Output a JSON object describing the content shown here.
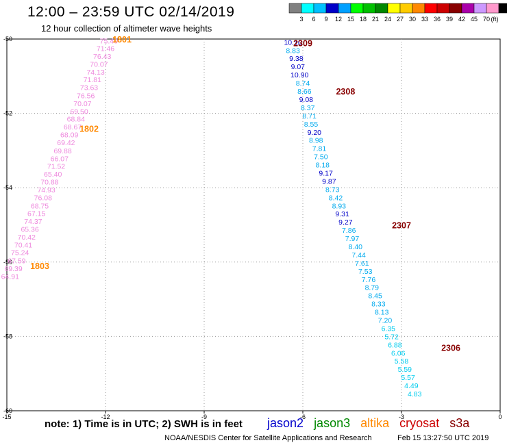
{
  "header": {
    "title": "12:00 – 23:59 UTC 02/14/2019",
    "subtitle": "12 hour collection of altimeter wave heights"
  },
  "scale": {
    "labels": [
      "3",
      "6",
      "9",
      "12",
      "15",
      "18",
      "21",
      "24",
      "27",
      "30",
      "33",
      "36",
      "39",
      "42",
      "45",
      "70"
    ],
    "unit": "(ft)",
    "colors": [
      "#808080",
      "#00ffff",
      "#00c0ff",
      "#0000c8",
      "#00a0ff",
      "#00ff00",
      "#00c000",
      "#008800",
      "#ffff00",
      "#ffcc00",
      "#ff8800",
      "#ff0000",
      "#cc0000",
      "#880000",
      "#aa00aa",
      "#cc99ff",
      "#ff99cc",
      "#000000"
    ]
  },
  "footer": {
    "note": "note: 1) Time is in UTC; 2) SWH is in feet",
    "credit": "NOAA/NESDIS Center for Satellite Applications and Research",
    "date": "Feb 15 13:27:50 UTC 2019",
    "satellites": [
      {
        "name": "jason2",
        "color": "#0000cc"
      },
      {
        "name": "jason3",
        "color": "#008800"
      },
      {
        "name": "altika",
        "color": "#ff8800"
      },
      {
        "name": "cryosat",
        "color": "#cc0000"
      },
      {
        "name": "s3a",
        "color": "#880000"
      }
    ]
  },
  "chart_data": {
    "type": "scatter",
    "xlim": [
      -15,
      0
    ],
    "ylim": [
      -60,
      -50
    ],
    "x_ticks": [
      "-15",
      "-12",
      "-9",
      "-6",
      "-3",
      "0"
    ],
    "y_ticks": [
      "-50",
      "-52",
      "-54",
      "-56",
      "-58",
      "-60"
    ],
    "grid": true,
    "pass_labels": [
      {
        "text": "1801",
        "x": -11.5,
        "y": -50.0,
        "color": "#ff8800"
      },
      {
        "text": "1802",
        "x": -12.5,
        "y": -52.4,
        "color": "#ff8800"
      },
      {
        "text": "1803",
        "x": -14.0,
        "y": -56.1,
        "color": "#ff8800"
      },
      {
        "text": "2309",
        "x": -6.0,
        "y": -50.1,
        "color": "#880000"
      },
      {
        "text": "2308",
        "x": -4.7,
        "y": -51.4,
        "color": "#880000"
      },
      {
        "text": "2307",
        "x": -3.0,
        "y": -55.0,
        "color": "#880000"
      },
      {
        "text": "2306",
        "x": -1.5,
        "y": -58.3,
        "color": "#880000"
      }
    ],
    "series": [
      {
        "color": "#ee88dd",
        "points": [
          {
            "x": -11.9,
            "y": -50.05,
            "label": "75.40"
          },
          {
            "x": -12.0,
            "y": -50.25,
            "label": "71.46"
          },
          {
            "x": -12.1,
            "y": -50.46,
            "label": "76.43"
          },
          {
            "x": -12.2,
            "y": -50.67,
            "label": "70.07"
          },
          {
            "x": -12.3,
            "y": -50.88,
            "label": "74.13"
          },
          {
            "x": -12.4,
            "y": -51.09,
            "label": "71.81"
          },
          {
            "x": -12.5,
            "y": -51.3,
            "label": "73.63"
          },
          {
            "x": -12.6,
            "y": -51.52,
            "label": "76.56"
          },
          {
            "x": -12.7,
            "y": -51.73,
            "label": "70.07"
          },
          {
            "x": -12.8,
            "y": -51.94,
            "label": "69.50"
          },
          {
            "x": -12.9,
            "y": -52.15,
            "label": "68.84"
          },
          {
            "x": -13.0,
            "y": -52.36,
            "label": "68.67"
          },
          {
            "x": -13.1,
            "y": -52.57,
            "label": "68.09"
          },
          {
            "x": -13.2,
            "y": -52.78,
            "label": "69.42"
          },
          {
            "x": -13.3,
            "y": -53.0,
            "label": "69.88"
          },
          {
            "x": -13.4,
            "y": -53.21,
            "label": "66.07"
          },
          {
            "x": -13.5,
            "y": -53.42,
            "label": "71.52"
          },
          {
            "x": -13.6,
            "y": -53.63,
            "label": "65.40"
          },
          {
            "x": -13.7,
            "y": -53.84,
            "label": "70.88"
          },
          {
            "x": -13.8,
            "y": -54.05,
            "label": "74.93"
          },
          {
            "x": -13.9,
            "y": -54.26,
            "label": "76.08"
          },
          {
            "x": -14.0,
            "y": -54.48,
            "label": "68.75"
          },
          {
            "x": -14.1,
            "y": -54.69,
            "label": "67.15"
          },
          {
            "x": -14.2,
            "y": -54.9,
            "label": "74.37"
          },
          {
            "x": -14.3,
            "y": -55.11,
            "label": "65.36"
          },
          {
            "x": -14.4,
            "y": -55.32,
            "label": "70.42"
          },
          {
            "x": -14.5,
            "y": -55.53,
            "label": "70.41"
          },
          {
            "x": -14.6,
            "y": -55.74,
            "label": "75.24"
          },
          {
            "x": -14.7,
            "y": -55.96,
            "label": "67.59"
          },
          {
            "x": -14.8,
            "y": -56.17,
            "label": "69.39"
          },
          {
            "x": -14.9,
            "y": -56.38,
            "label": "64.91"
          }
        ]
      },
      {
        "color": "#00aaee",
        "points": [
          {
            "x": -6.3,
            "y": -50.08,
            "label": "10.10",
            "color": "#0000c8"
          },
          {
            "x": -6.3,
            "y": -50.3,
            "label": "8.83",
            "color": "#00aaee"
          },
          {
            "x": -6.2,
            "y": -50.52,
            "label": "9.38",
            "color": "#0000c8"
          },
          {
            "x": -6.15,
            "y": -50.74,
            "label": "9.07",
            "color": "#0000c8"
          },
          {
            "x": -6.1,
            "y": -50.96,
            "label": "10.90",
            "color": "#0000c8"
          },
          {
            "x": -6.0,
            "y": -51.18,
            "label": "8.74",
            "color": "#00aaee"
          },
          {
            "x": -5.95,
            "y": -51.4,
            "label": "8.66",
            "color": "#00aaee"
          },
          {
            "x": -5.9,
            "y": -51.62,
            "label": "9.08",
            "color": "#0000c8"
          },
          {
            "x": -5.85,
            "y": -51.84,
            "label": "8.37",
            "color": "#00aaee"
          },
          {
            "x": -5.8,
            "y": -52.06,
            "label": "8.71",
            "color": "#00aaee"
          },
          {
            "x": -5.75,
            "y": -52.28,
            "label": "8.55",
            "color": "#00aaee"
          },
          {
            "x": -5.65,
            "y": -52.5,
            "label": "9.20",
            "color": "#0000c8"
          },
          {
            "x": -5.6,
            "y": -52.72,
            "label": "8.98",
            "color": "#00aaee"
          },
          {
            "x": -5.5,
            "y": -52.94,
            "label": "7.81",
            "color": "#00aaee"
          },
          {
            "x": -5.45,
            "y": -53.16,
            "label": "7.50",
            "color": "#00aaee"
          },
          {
            "x": -5.4,
            "y": -53.38,
            "label": "8.18",
            "color": "#00aaee"
          },
          {
            "x": -5.3,
            "y": -53.6,
            "label": "9.17",
            "color": "#0000c8"
          },
          {
            "x": -5.2,
            "y": -53.82,
            "label": "9.87",
            "color": "#0000c8"
          },
          {
            "x": -5.1,
            "y": -54.04,
            "label": "8.73",
            "color": "#00aaee"
          },
          {
            "x": -5.0,
            "y": -54.26,
            "label": "8.42",
            "color": "#00aaee"
          },
          {
            "x": -4.9,
            "y": -54.48,
            "label": "8.93",
            "color": "#00aaee"
          },
          {
            "x": -4.8,
            "y": -54.7,
            "label": "9.31",
            "color": "#0000c8"
          },
          {
            "x": -4.7,
            "y": -54.92,
            "label": "9.27",
            "color": "#0000c8"
          },
          {
            "x": -4.6,
            "y": -55.14,
            "label": "7.86",
            "color": "#00aaee"
          },
          {
            "x": -4.5,
            "y": -55.36,
            "label": "7.97",
            "color": "#00aaee"
          },
          {
            "x": -4.4,
            "y": -55.58,
            "label": "8.40",
            "color": "#00aaee"
          },
          {
            "x": -4.3,
            "y": -55.8,
            "label": "7.44",
            "color": "#00aaee"
          },
          {
            "x": -4.2,
            "y": -56.02,
            "label": "7.61",
            "color": "#00aaee"
          },
          {
            "x": -4.1,
            "y": -56.24,
            "label": "7.53",
            "color": "#00aaee"
          },
          {
            "x": -4.0,
            "y": -56.46,
            "label": "7.76",
            "color": "#00aaee"
          },
          {
            "x": -3.9,
            "y": -56.68,
            "label": "8.79",
            "color": "#00aaee"
          },
          {
            "x": -3.8,
            "y": -56.9,
            "label": "8.45",
            "color": "#00aaee"
          },
          {
            "x": -3.7,
            "y": -57.12,
            "label": "8.33",
            "color": "#00aaee"
          },
          {
            "x": -3.6,
            "y": -57.34,
            "label": "8.13",
            "color": "#00aaee"
          },
          {
            "x": -3.5,
            "y": -57.56,
            "label": "7.20",
            "color": "#00aaee"
          },
          {
            "x": -3.4,
            "y": -57.78,
            "label": "6.35",
            "color": "#00ccee"
          },
          {
            "x": -3.3,
            "y": -58.0,
            "label": "5.72",
            "color": "#00ccee"
          },
          {
            "x": -3.2,
            "y": -58.22,
            "label": "6.88",
            "color": "#00ccee"
          },
          {
            "x": -3.1,
            "y": -58.44,
            "label": "6.06",
            "color": "#00ccee"
          },
          {
            "x": -3.0,
            "y": -58.66,
            "label": "5.58",
            "color": "#00ccee"
          },
          {
            "x": -2.9,
            "y": -58.88,
            "label": "5.59",
            "color": "#00ccee"
          },
          {
            "x": -2.8,
            "y": -59.1,
            "label": "5.57",
            "color": "#00ccee"
          },
          {
            "x": -2.7,
            "y": -59.32,
            "label": "4.49",
            "color": "#00ccee"
          },
          {
            "x": -2.6,
            "y": -59.54,
            "label": "4.83",
            "color": "#00ccee"
          }
        ]
      }
    ]
  }
}
